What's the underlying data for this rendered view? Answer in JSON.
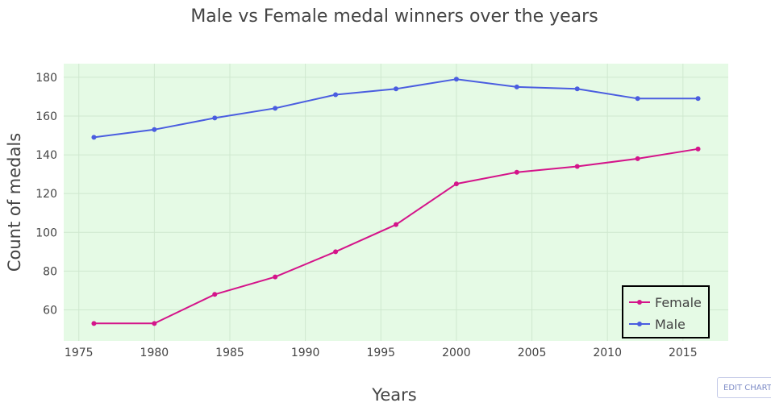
{
  "chart_data": {
    "type": "line",
    "title": "Male vs Female medal winners over the years",
    "xlabel": "Years",
    "ylabel": "Count of medals",
    "xlim": [
      1974,
      2018
    ],
    "ylim": [
      44,
      187
    ],
    "xticks": [
      1975,
      1980,
      1985,
      1990,
      1995,
      2000,
      2005,
      2010,
      2015
    ],
    "yticks": [
      60,
      80,
      100,
      120,
      140,
      160,
      180
    ],
    "x": [
      1976,
      1980,
      1984,
      1988,
      1992,
      1996,
      2000,
      2004,
      2008,
      2012,
      2016
    ],
    "series": [
      {
        "name": "Female",
        "color": "#d4148a",
        "values": [
          53,
          53,
          68,
          77,
          90,
          104,
          125,
          131,
          134,
          138,
          143
        ]
      },
      {
        "name": "Male",
        "color": "#4a5de0",
        "values": [
          149,
          153,
          159,
          164,
          171,
          174,
          179,
          175,
          174,
          169,
          169
        ]
      }
    ],
    "grid": true,
    "plot_background": "#e5fae5",
    "legend_position": "bottom-right"
  },
  "edit_button": {
    "label": "EDIT CHART"
  }
}
